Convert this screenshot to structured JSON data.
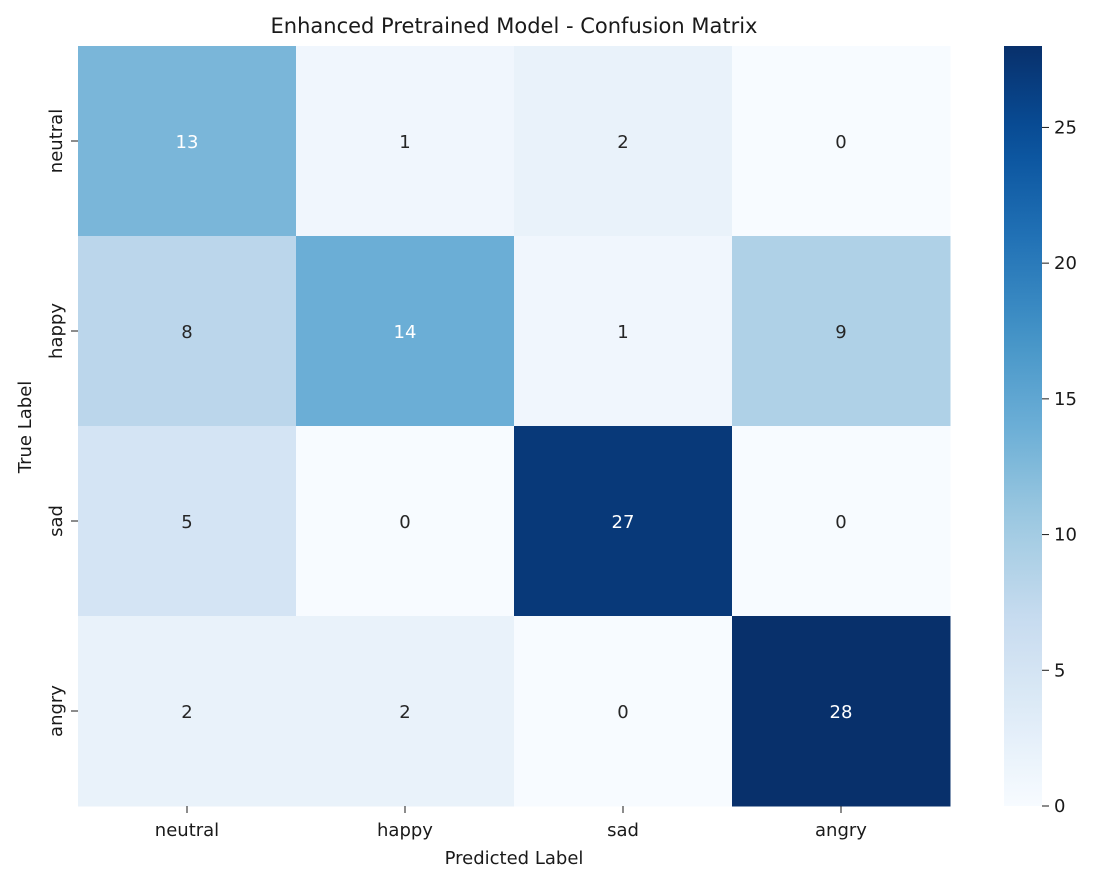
{
  "chart_data": {
    "type": "heatmap",
    "title": "Enhanced Pretrained Model - Confusion Matrix",
    "xlabel": "Predicted Label",
    "ylabel": "True Label",
    "x_categories": [
      "neutral",
      "happy",
      "sad",
      "angry"
    ],
    "y_categories": [
      "neutral",
      "happy",
      "sad",
      "angry"
    ],
    "values": [
      [
        13,
        1,
        2,
        0
      ],
      [
        8,
        14,
        1,
        9
      ],
      [
        5,
        0,
        27,
        0
      ],
      [
        2,
        2,
        0,
        28
      ]
    ],
    "colormap": "Blues",
    "vmin": 0,
    "vmax": 28,
    "colorbar": {
      "ticks": [
        0,
        5,
        10,
        15,
        20,
        25
      ],
      "position": "right"
    },
    "annotations": true,
    "grid": false
  }
}
